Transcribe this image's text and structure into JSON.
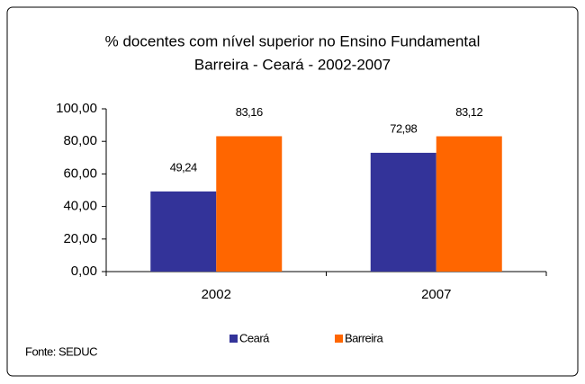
{
  "chart_data": {
    "type": "bar",
    "title": "% docentes com nível superior no  Ensino Fundamental",
    "subtitle": "Barreira - Ceará - 2002-2007",
    "categories": [
      "2002",
      "2007"
    ],
    "series": [
      {
        "name": "Ceará",
        "color": "#333399",
        "values": [
          49.24,
          72.98
        ],
        "value_labels": [
          "49,24",
          "72,98"
        ]
      },
      {
        "name": "Barreira",
        "color": "#ff6600",
        "values": [
          83.16,
          83.12
        ],
        "value_labels": [
          "83,16",
          "83,12"
        ]
      }
    ],
    "ylim": [
      0,
      100
    ],
    "yticks": [
      {
        "value": 0,
        "label": "0,00"
      },
      {
        "value": 20,
        "label": "20,00"
      },
      {
        "value": 40,
        "label": "40,00"
      },
      {
        "value": 60,
        "label": "60,00"
      },
      {
        "value": 80,
        "label": "80,00"
      },
      {
        "value": 100,
        "label": "100,00"
      }
    ],
    "grid": false,
    "legend": "bottom",
    "source": "Fonte: SEDUC"
  }
}
